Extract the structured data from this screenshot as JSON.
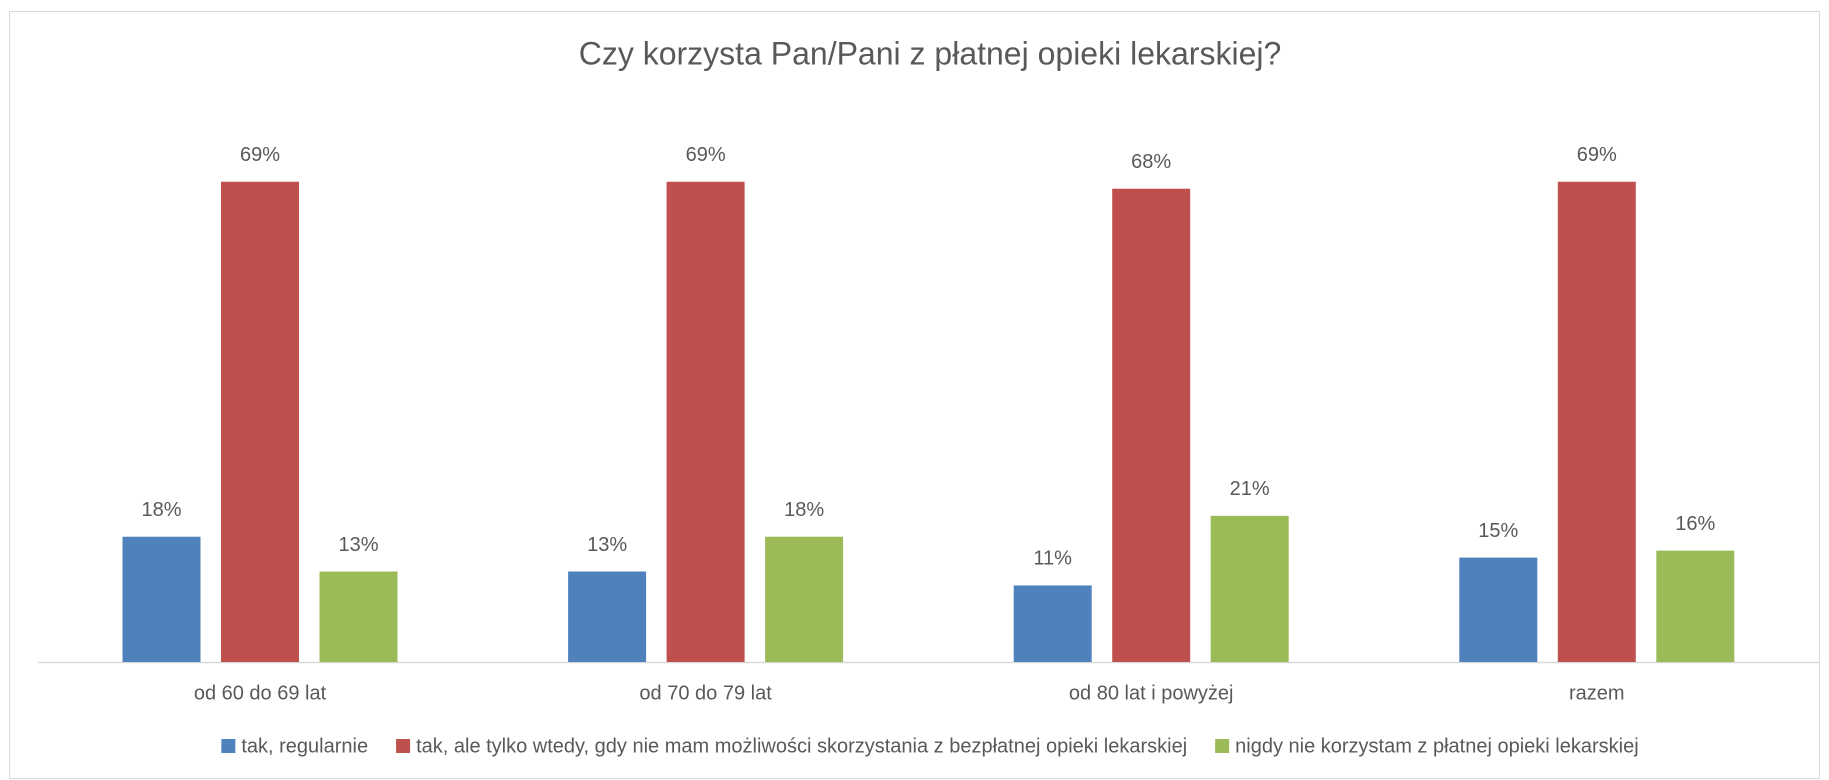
{
  "chart_data": {
    "type": "bar",
    "title": "Czy korzysta Pan/Pani z płatnej opieki lekarskiej?",
    "categories": [
      "od 60 do 69 lat",
      "od 70 do 79 lat",
      "od 80 lat i powyżej",
      "razem"
    ],
    "series": [
      {
        "name": "tak, regularnie",
        "color": "#4f81bd",
        "values": [
          18,
          13,
          11,
          15
        ]
      },
      {
        "name": "tak, ale tylko wtedy, gdy nie mam możliwości skorzystania z bezpłatnej opieki lekarskiej",
        "color": "#c0504d",
        "values": [
          69,
          69,
          68,
          69
        ]
      },
      {
        "name": "nigdy nie korzystam z płatnej opieki lekarskiej",
        "color": "#9bbb59",
        "values": [
          13,
          18,
          21,
          16
        ]
      }
    ],
    "value_labels": [
      [
        "18%",
        "13%",
        "11%",
        "15%"
      ],
      [
        "69%",
        "69%",
        "68%",
        "69%"
      ],
      [
        "13%",
        "18%",
        "21%",
        "16%"
      ]
    ],
    "legend": "bottom"
  }
}
